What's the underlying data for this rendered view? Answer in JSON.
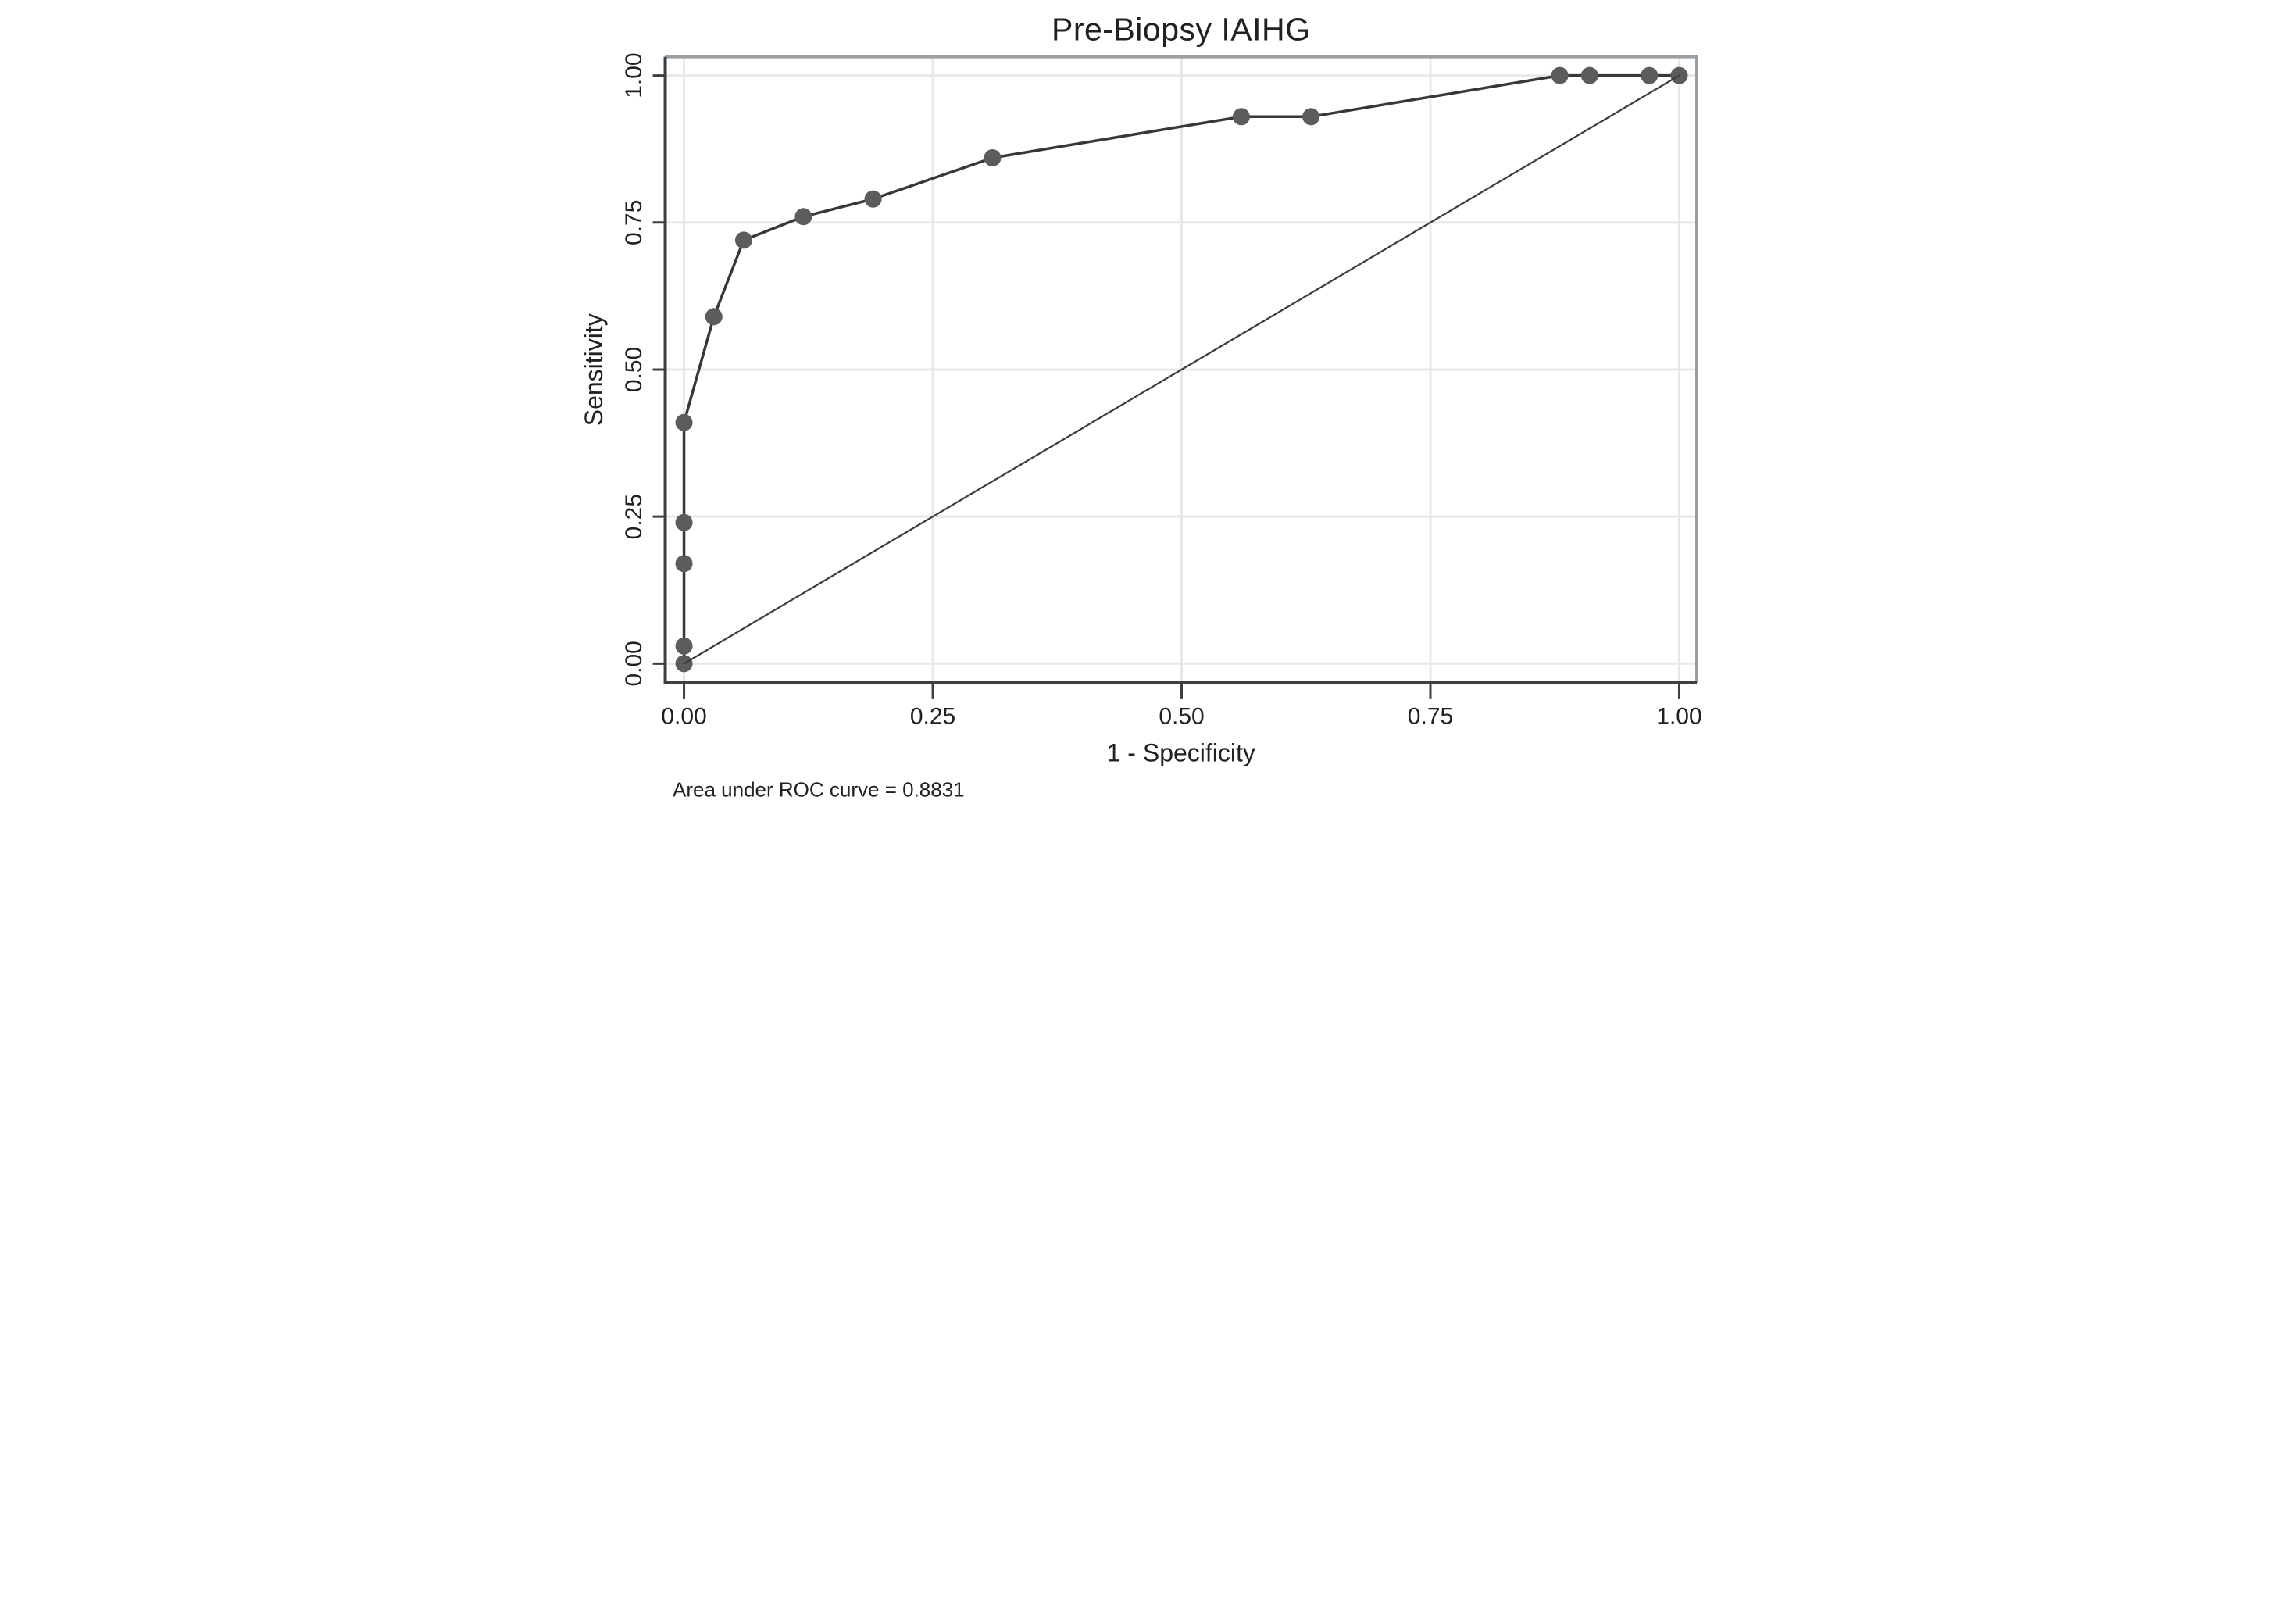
{
  "figure": {
    "title": "Pre-Biopsy IAIHG",
    "auc_note": "Area under ROC curve = 0.8831"
  },
  "chart_data": {
    "type": "line",
    "title": "Pre-Biopsy IAIHG",
    "xlabel": "1 - Specificity",
    "ylabel": "Sensitivity",
    "xlim": [
      0,
      1
    ],
    "ylim": [
      0,
      1
    ],
    "grid": true,
    "legend": "none",
    "x_ticks": [
      0.0,
      0.25,
      0.5,
      0.75,
      1.0
    ],
    "y_ticks": [
      0.0,
      0.25,
      0.5,
      0.75,
      1.0
    ],
    "x_tick_labels": [
      "0.00",
      "0.25",
      "0.50",
      "0.75",
      "1.00"
    ],
    "y_tick_labels": [
      "0.00",
      "0.25",
      "0.50",
      "0.75",
      "1.00"
    ],
    "annotation": "Area under ROC curve = 0.8831",
    "auc": 0.8831,
    "series": [
      {
        "name": "ROC curve",
        "marker": true,
        "points": [
          [
            0.0,
            0.0
          ],
          [
            0.0,
            0.03
          ],
          [
            0.0,
            0.17
          ],
          [
            0.0,
            0.24
          ],
          [
            0.0,
            0.41
          ],
          [
            0.03,
            0.59
          ],
          [
            0.06,
            0.72
          ],
          [
            0.12,
            0.76
          ],
          [
            0.19,
            0.79
          ],
          [
            0.31,
            0.86
          ],
          [
            0.56,
            0.93
          ],
          [
            0.63,
            0.93
          ],
          [
            0.88,
            1.0
          ],
          [
            0.91,
            1.0
          ],
          [
            0.97,
            1.0
          ],
          [
            1.0,
            1.0
          ]
        ]
      },
      {
        "name": "Reference line",
        "marker": false,
        "points": [
          [
            0.0,
            0.0
          ],
          [
            1.0,
            1.0
          ]
        ]
      }
    ],
    "colors": {
      "curve": "#383838",
      "marker": "#5c5c5c",
      "reference": "#3d3d3d",
      "grid": "#e8e8e8",
      "axis_dark": "#3c4043",
      "axis_light": "#9aa0a3",
      "text": "#212121",
      "background": "#ffffff"
    }
  }
}
